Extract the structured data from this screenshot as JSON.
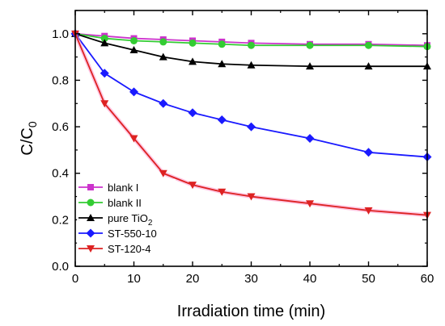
{
  "chart_data": {
    "type": "line",
    "xlabel": "Irradiation time (min)",
    "ylabel": {
      "main": "C/C",
      "sub": "0"
    },
    "xlim": [
      0,
      60
    ],
    "ylim": [
      0.0,
      1.1
    ],
    "xticks": [
      0,
      10,
      20,
      30,
      40,
      50,
      60
    ],
    "xtick_labels": [
      "0",
      "10",
      "20",
      "30",
      "40",
      "50",
      "60"
    ],
    "yticks": [
      0.0,
      0.2,
      0.4,
      0.6,
      0.8,
      1.0
    ],
    "ytick_labels": [
      "0.0",
      "0.2",
      "0.4",
      "0.6",
      "0.8",
      "1.0"
    ],
    "grid": false,
    "legend_position": "bottom-left",
    "series": [
      {
        "id": "blank1",
        "name": "blank I",
        "color": "#cc33cc",
        "marker": "square",
        "x": [
          0,
          5,
          10,
          15,
          20,
          25,
          30,
          40,
          50,
          60
        ],
        "y": [
          1.0,
          0.99,
          0.98,
          0.975,
          0.97,
          0.965,
          0.96,
          0.955,
          0.955,
          0.95
        ]
      },
      {
        "id": "blank2",
        "name": "blank II",
        "color": "#33cc33",
        "marker": "circle",
        "x": [
          0,
          5,
          10,
          15,
          20,
          25,
          30,
          40,
          50,
          60
        ],
        "y": [
          1.0,
          0.98,
          0.97,
          0.965,
          0.96,
          0.955,
          0.95,
          0.95,
          0.95,
          0.945
        ]
      },
      {
        "id": "tio2",
        "name": "pure TiO",
        "name_sub": "2",
        "color": "#000000",
        "marker": "triangle-up",
        "x": [
          0,
          5,
          10,
          15,
          20,
          25,
          30,
          40,
          50,
          60
        ],
        "y": [
          1.0,
          0.96,
          0.93,
          0.9,
          0.88,
          0.87,
          0.865,
          0.86,
          0.86,
          0.86
        ]
      },
      {
        "id": "st55010",
        "name": "ST-550-10",
        "color": "#1a1aff",
        "marker": "diamond",
        "x": [
          0,
          5,
          10,
          15,
          20,
          25,
          30,
          40,
          50,
          60
        ],
        "y": [
          1.0,
          0.83,
          0.75,
          0.7,
          0.66,
          0.63,
          0.6,
          0.55,
          0.49,
          0.47
        ]
      },
      {
        "id": "st1204",
        "name": "ST-120-4",
        "color": "#dd2222",
        "marker": "triangle-down",
        "glow": "#ff99cc",
        "x": [
          0,
          5,
          10,
          15,
          20,
          25,
          30,
          40,
          50,
          60
        ],
        "y": [
          1.0,
          0.7,
          0.55,
          0.4,
          0.35,
          0.32,
          0.3,
          0.27,
          0.24,
          0.22
        ]
      }
    ]
  }
}
